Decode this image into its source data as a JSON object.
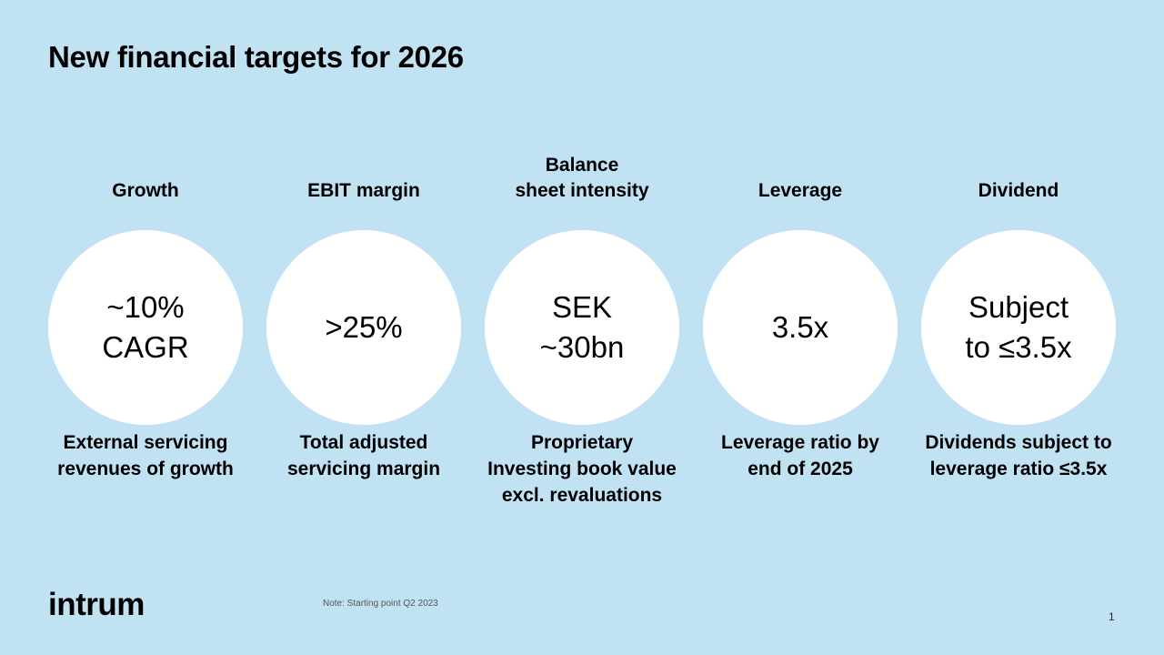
{
  "title": "New financial targets for 2026",
  "columns": [
    {
      "heading": "Growth",
      "value": "~10%\nCAGR",
      "description": "External servicing\nrevenues of growth"
    },
    {
      "heading": "EBIT margin",
      "value": ">25%",
      "description": "Total adjusted\nservicing margin"
    },
    {
      "heading": "Balance\nsheet intensity",
      "value": "SEK\n~30bn",
      "description": "Proprietary\nInvesting book value\nexcl. revaluations"
    },
    {
      "heading": "Leverage",
      "value": "3.5x",
      "description": "Leverage ratio by\nend of 2025"
    },
    {
      "heading": "Dividend",
      "value": "Subject\nto ≤3.5x",
      "description": "Dividends subject to\nleverage ratio ≤3.5x"
    }
  ],
  "logo": "intrum",
  "note": "Note: Starting point Q2 2023",
  "page_number": "1"
}
